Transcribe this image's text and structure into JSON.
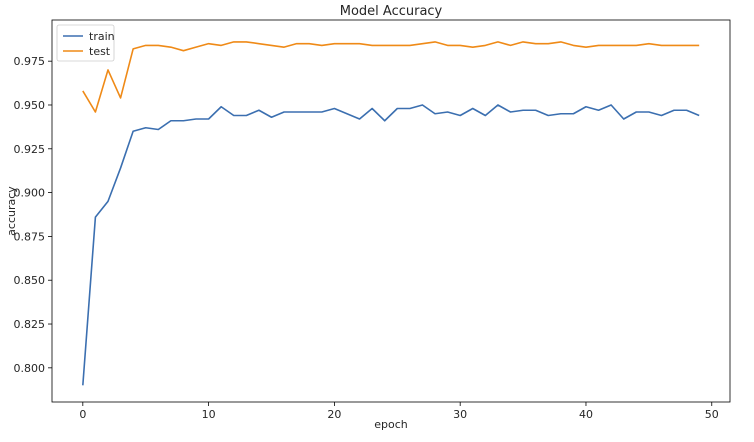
{
  "chart_data": {
    "type": "line",
    "title": "Model Accuracy",
    "xlabel": "epoch",
    "ylabel": "accuracy",
    "xlim": [
      -2.45,
      51.45
    ],
    "ylim": [
      0.7805,
      0.9985
    ],
    "xticks": [
      0,
      10,
      20,
      30,
      40,
      50
    ],
    "yticks": [
      0.8,
      0.825,
      0.85,
      0.875,
      0.9,
      0.925,
      0.95,
      0.975
    ],
    "ytick_labels": [
      "0.800",
      "0.825",
      "0.850",
      "0.875",
      "0.900",
      "0.925",
      "0.950",
      "0.975"
    ],
    "legend_position": "upper-left",
    "grid": false,
    "x": [
      0,
      1,
      2,
      3,
      4,
      5,
      6,
      7,
      8,
      9,
      10,
      11,
      12,
      13,
      14,
      15,
      16,
      17,
      18,
      19,
      20,
      21,
      22,
      23,
      24,
      25,
      26,
      27,
      28,
      29,
      30,
      31,
      32,
      33,
      34,
      35,
      36,
      37,
      38,
      39,
      40,
      41,
      42,
      43,
      44,
      45,
      46,
      47,
      48,
      49
    ],
    "series": [
      {
        "name": "train",
        "color": "#3b6fb0",
        "values": [
          0.79,
          0.886,
          0.895,
          0.914,
          0.935,
          0.937,
          0.936,
          0.941,
          0.941,
          0.942,
          0.942,
          0.949,
          0.944,
          0.944,
          0.947,
          0.943,
          0.946,
          0.946,
          0.946,
          0.946,
          0.948,
          0.945,
          0.942,
          0.948,
          0.941,
          0.948,
          0.948,
          0.95,
          0.945,
          0.946,
          0.944,
          0.948,
          0.944,
          0.95,
          0.946,
          0.947,
          0.947,
          0.944,
          0.945,
          0.945,
          0.949,
          0.947,
          0.95,
          0.942,
          0.946,
          0.946,
          0.944,
          0.947,
          0.947,
          0.944
        ]
      },
      {
        "name": "test",
        "color": "#ef8a17",
        "values": [
          0.958,
          0.946,
          0.97,
          0.954,
          0.982,
          0.984,
          0.984,
          0.983,
          0.981,
          0.983,
          0.985,
          0.984,
          0.986,
          0.986,
          0.985,
          0.984,
          0.983,
          0.985,
          0.985,
          0.984,
          0.985,
          0.985,
          0.985,
          0.984,
          0.984,
          0.984,
          0.984,
          0.985,
          0.986,
          0.984,
          0.984,
          0.983,
          0.984,
          0.986,
          0.984,
          0.986,
          0.985,
          0.985,
          0.986,
          0.984,
          0.983,
          0.984,
          0.984,
          0.984,
          0.984,
          0.985,
          0.984,
          0.984,
          0.984,
          0.984
        ]
      }
    ]
  }
}
